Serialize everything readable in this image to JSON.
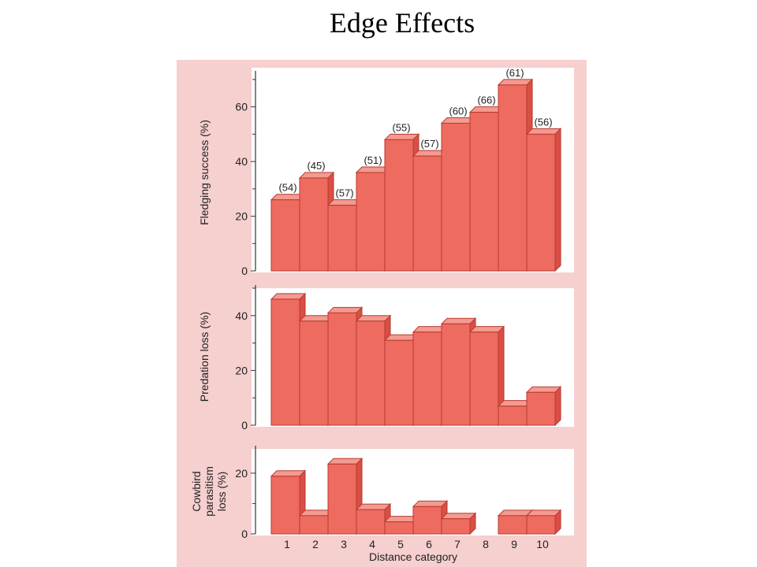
{
  "title": "Edge Effects",
  "colors": {
    "figure_bg": "#f6cfcf",
    "panel_bg": "#ffffff",
    "bar_front": "#ee6b5f",
    "bar_top": "#f49a90",
    "bar_side": "#d94f44",
    "bar_stroke": "#b83a30"
  },
  "chart_data": [
    {
      "type": "bar",
      "ylabel": "Fledging success (%)",
      "ylim": [
        0,
        72
      ],
      "yticks": [
        0,
        20,
        40,
        60
      ],
      "categories": [
        "1",
        "2",
        "3",
        "4",
        "5",
        "6",
        "7",
        "8",
        "9",
        "10"
      ],
      "values": [
        26,
        34,
        24,
        36,
        48,
        42,
        54,
        58,
        68,
        50
      ],
      "bar_labels": [
        "(54)",
        "(45)",
        "(57)",
        "(51)",
        "(55)",
        "(57)",
        "(60)",
        "(66)",
        "(61)",
        "(56)"
      ]
    },
    {
      "type": "bar",
      "ylabel": "Predation loss (%)",
      "ylim": [
        0,
        50
      ],
      "yticks": [
        0,
        20,
        40
      ],
      "categories": [
        "1",
        "2",
        "3",
        "4",
        "5",
        "6",
        "7",
        "8",
        "9",
        "10"
      ],
      "values": [
        46,
        38,
        41,
        38,
        31,
        34,
        37,
        34,
        7,
        12
      ]
    },
    {
      "type": "bar",
      "ylabel": "Cowbird parasitism loss (%)",
      "ylabel_lines": [
        "Cowbird",
        "parasitism",
        "loss (%)"
      ],
      "ylim": [
        0,
        28
      ],
      "yticks": [
        0,
        20
      ],
      "categories": [
        "1",
        "2",
        "3",
        "4",
        "5",
        "6",
        "7",
        "8",
        "9",
        "10"
      ],
      "values": [
        19,
        6,
        23,
        8,
        4,
        9,
        5,
        0,
        6,
        6
      ],
      "xlabel": "Distance category"
    }
  ]
}
